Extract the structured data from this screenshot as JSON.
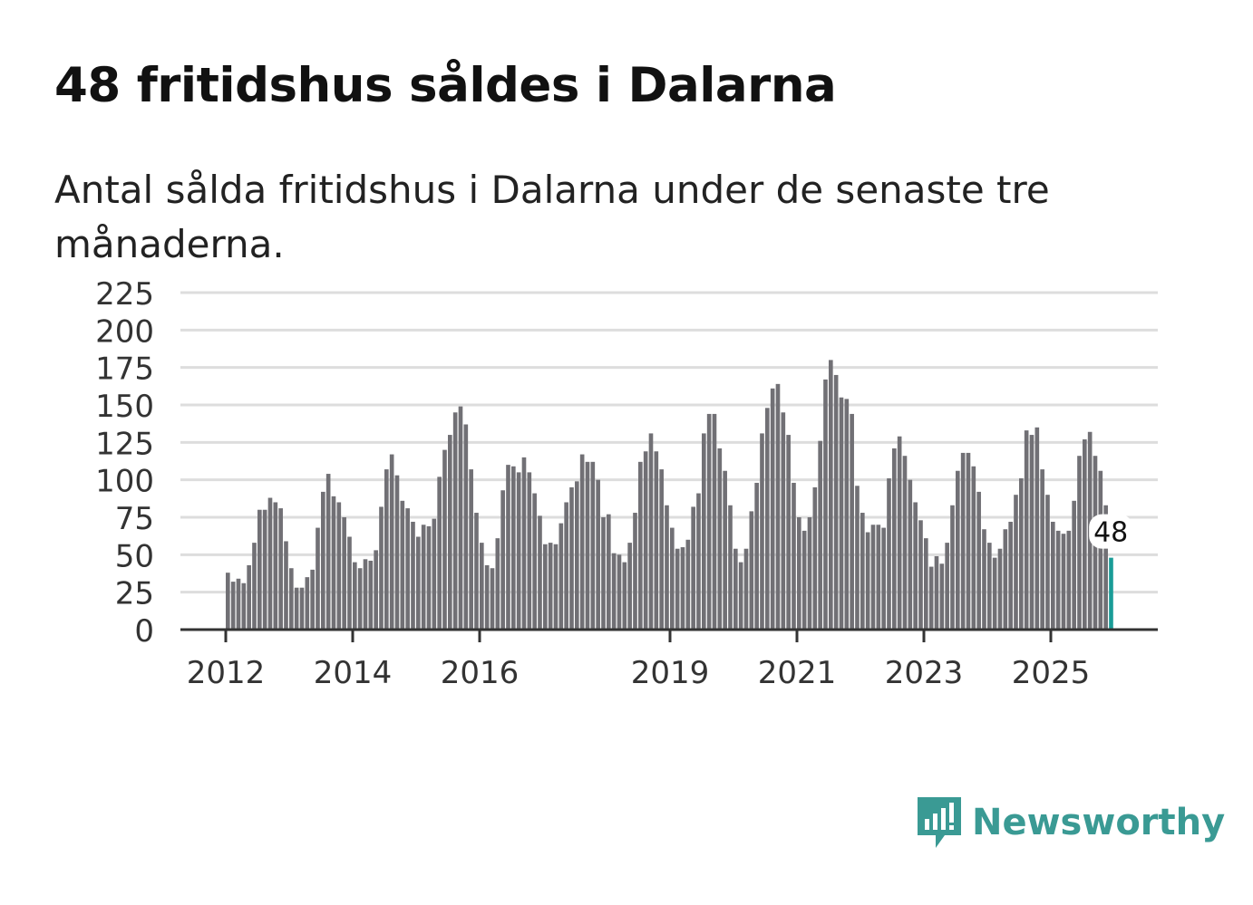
{
  "title": "48 fritidshus såldes i Dalarna",
  "subtitle": "Antal sålda fritidshus i Dalarna under de senaste tre månaderna.",
  "brand": "Newsworthy",
  "colors": {
    "bar": "#717075",
    "highlight": "#1a9c97",
    "brand": "#3a9a94",
    "grid": "#dddddd"
  },
  "chart_data": {
    "type": "bar",
    "title": "48 fritidshus såldes i Dalarna",
    "xlabel": "",
    "ylabel": "",
    "ylim": [
      0,
      225
    ],
    "yticks": [
      0,
      25,
      50,
      75,
      100,
      125,
      150,
      175,
      200,
      225
    ],
    "xticks": [
      "2012",
      "2014",
      "2016",
      "2019",
      "2021",
      "2023",
      "2025"
    ],
    "start": "2012-01",
    "frequency": "monthly",
    "grid": true,
    "highlight_label": "48",
    "values": [
      38,
      32,
      34,
      31,
      43,
      58,
      80,
      80,
      88,
      85,
      81,
      59,
      41,
      28,
      28,
      35,
      40,
      68,
      92,
      104,
      89,
      85,
      75,
      62,
      45,
      41,
      47,
      46,
      53,
      82,
      107,
      117,
      103,
      86,
      81,
      72,
      62,
      70,
      69,
      74,
      102,
      120,
      130,
      145,
      149,
      137,
      107,
      78,
      58,
      43,
      41,
      61,
      93,
      110,
      109,
      105,
      115,
      105,
      91,
      76,
      57,
      58,
      57,
      71,
      85,
      95,
      99,
      117,
      112,
      112,
      100,
      75,
      77,
      51,
      50,
      45,
      58,
      78,
      112,
      119,
      131,
      119,
      107,
      83,
      68,
      54,
      55,
      60,
      82,
      91,
      131,
      144,
      144,
      121,
      106,
      83,
      54,
      45,
      54,
      79,
      98,
      131,
      148,
      161,
      164,
      145,
      130,
      98,
      75,
      66,
      75,
      95,
      126,
      167,
      180,
      170,
      155,
      154,
      144,
      96,
      78,
      65,
      70,
      70,
      68,
      101,
      121,
      129,
      116,
      100,
      85,
      73,
      61,
      42,
      49,
      44,
      58,
      83,
      106,
      118,
      118,
      109,
      92,
      67,
      58,
      48,
      54,
      67,
      72,
      90,
      101,
      133,
      130,
      135,
      107,
      90,
      72,
      66,
      64,
      66,
      86,
      116,
      127,
      132,
      116,
      106,
      83,
      48
    ]
  }
}
